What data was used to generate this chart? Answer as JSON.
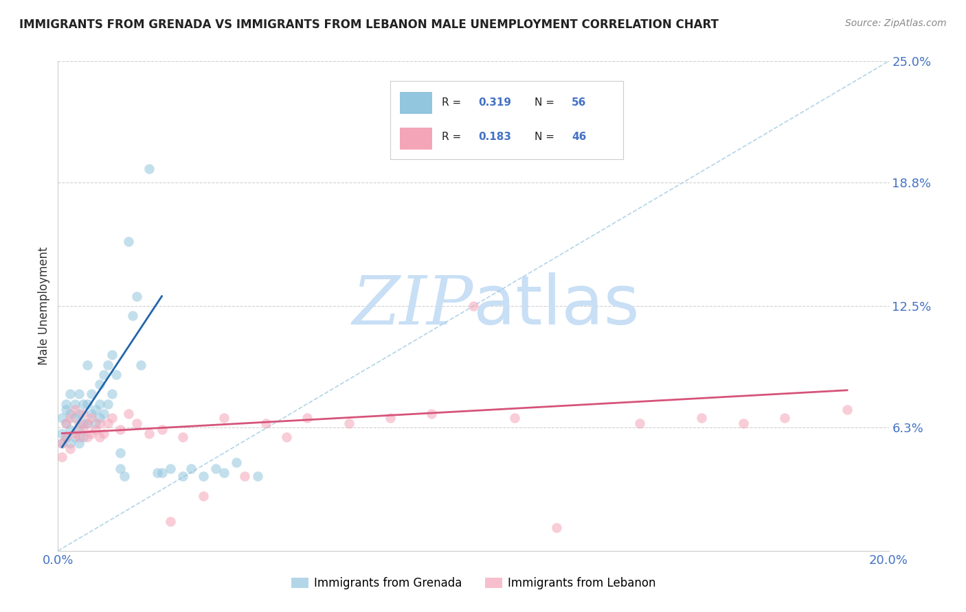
{
  "title": "IMMIGRANTS FROM GRENADA VS IMMIGRANTS FROM LEBANON MALE UNEMPLOYMENT CORRELATION CHART",
  "source": "Source: ZipAtlas.com",
  "ylabel": "Male Unemployment",
  "xlim": [
    0.0,
    0.2
  ],
  "ylim": [
    0.0,
    0.25
  ],
  "ytick_positions": [
    0.063,
    0.125,
    0.188,
    0.25
  ],
  "ytick_labels": [
    "6.3%",
    "12.5%",
    "18.8%",
    "25.0%"
  ],
  "grenada_color": "#92c5de",
  "lebanon_color": "#f4a5b8",
  "grenada_line_color": "#2166ac",
  "lebanon_line_color": "#d6537a",
  "diagonal_color": "#9ecae1",
  "watermark_color": "#c8dff5",
  "grenada_x": [
    0.001,
    0.001,
    0.001,
    0.002,
    0.002,
    0.002,
    0.002,
    0.003,
    0.003,
    0.003,
    0.003,
    0.004,
    0.004,
    0.004,
    0.005,
    0.005,
    0.005,
    0.005,
    0.006,
    0.006,
    0.006,
    0.007,
    0.007,
    0.007,
    0.008,
    0.008,
    0.009,
    0.009,
    0.01,
    0.01,
    0.01,
    0.011,
    0.011,
    0.012,
    0.012,
    0.013,
    0.013,
    0.014,
    0.015,
    0.015,
    0.016,
    0.017,
    0.018,
    0.019,
    0.02,
    0.022,
    0.024,
    0.025,
    0.027,
    0.03,
    0.032,
    0.035,
    0.038,
    0.04,
    0.043,
    0.048
  ],
  "grenada_y": [
    0.06,
    0.068,
    0.055,
    0.065,
    0.072,
    0.058,
    0.075,
    0.062,
    0.07,
    0.08,
    0.055,
    0.068,
    0.075,
    0.058,
    0.062,
    0.07,
    0.08,
    0.055,
    0.065,
    0.075,
    0.058,
    0.065,
    0.075,
    0.095,
    0.07,
    0.08,
    0.072,
    0.065,
    0.068,
    0.075,
    0.085,
    0.07,
    0.09,
    0.075,
    0.095,
    0.08,
    0.1,
    0.09,
    0.042,
    0.05,
    0.038,
    0.158,
    0.12,
    0.13,
    0.095,
    0.195,
    0.04,
    0.04,
    0.042,
    0.038,
    0.042,
    0.038,
    0.042,
    0.04,
    0.045,
    0.038
  ],
  "lebanon_x": [
    0.001,
    0.001,
    0.002,
    0.002,
    0.003,
    0.003,
    0.004,
    0.004,
    0.005,
    0.005,
    0.006,
    0.006,
    0.007,
    0.007,
    0.008,
    0.008,
    0.009,
    0.01,
    0.01,
    0.011,
    0.012,
    0.013,
    0.015,
    0.017,
    0.019,
    0.022,
    0.025,
    0.027,
    0.03,
    0.035,
    0.04,
    0.045,
    0.05,
    0.055,
    0.06,
    0.07,
    0.08,
    0.09,
    0.1,
    0.11,
    0.12,
    0.14,
    0.155,
    0.165,
    0.175,
    0.19
  ],
  "lebanon_y": [
    0.055,
    0.048,
    0.058,
    0.065,
    0.052,
    0.068,
    0.06,
    0.072,
    0.058,
    0.065,
    0.062,
    0.07,
    0.058,
    0.065,
    0.06,
    0.068,
    0.062,
    0.058,
    0.065,
    0.06,
    0.065,
    0.068,
    0.062,
    0.07,
    0.065,
    0.06,
    0.062,
    0.015,
    0.058,
    0.028,
    0.068,
    0.038,
    0.065,
    0.058,
    0.068,
    0.065,
    0.068,
    0.07,
    0.125,
    0.068,
    0.012,
    0.065,
    0.068,
    0.065,
    0.068,
    0.072
  ],
  "grenada_line_x": [
    0.001,
    0.025
  ],
  "grenada_line_y": [
    0.053,
    0.13
  ],
  "lebanon_line_x": [
    0.001,
    0.19
  ],
  "lebanon_line_y": [
    0.06,
    0.082
  ]
}
